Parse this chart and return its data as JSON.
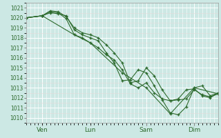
{
  "background_color": "#cce8e4",
  "grid_color": "#ffffff",
  "grid_color_minor": "#ddeee8",
  "line_color": "#2d6a2d",
  "ylim": [
    1009.5,
    1021.5
  ],
  "yticks": [
    1010,
    1011,
    1012,
    1013,
    1014,
    1015,
    1016,
    1017,
    1018,
    1019,
    1020,
    1021
  ],
  "day_labels": [
    "Ven",
    "Lun",
    "Sam",
    "Dim"
  ],
  "day_positions": [
    0.083,
    0.333,
    0.625,
    0.875
  ],
  "xlim": [
    0.0,
    1.05
  ],
  "series1_x": [
    0.0,
    0.083,
    0.25,
    0.333,
    0.5,
    0.625,
    0.75,
    0.875,
    1.0
  ],
  "series1_y": [
    1020.0,
    1020.2,
    1018.3,
    1017.5,
    1014.5,
    1013.0,
    1010.4,
    1013.0,
    1012.4
  ],
  "series2_x": [
    0.0,
    0.083,
    0.125,
    0.167,
    0.208,
    0.25,
    0.292,
    0.333,
    0.375,
    0.417,
    0.458,
    0.5,
    0.542,
    0.583,
    0.625,
    0.667,
    0.708,
    0.75,
    0.792,
    0.833,
    0.875,
    0.917,
    0.958,
    1.0
  ],
  "series2_y": [
    1020.0,
    1020.2,
    1020.5,
    1020.4,
    1020.2,
    1018.8,
    1018.3,
    1018.0,
    1017.7,
    1016.5,
    1015.5,
    1013.7,
    1013.8,
    1014.8,
    1014.5,
    1013.2,
    1011.8,
    1010.5,
    1010.3,
    1011.1,
    1013.0,
    1013.2,
    1012.2,
    1012.5
  ],
  "series3_x": [
    0.0,
    0.083,
    0.125,
    0.167,
    0.208,
    0.25,
    0.292,
    0.333,
    0.375,
    0.417,
    0.458,
    0.5,
    0.542,
    0.583,
    0.625,
    0.667,
    0.708,
    0.75,
    0.792,
    0.833,
    0.875,
    0.917,
    0.958,
    1.0
  ],
  "series3_y": [
    1020.0,
    1020.2,
    1020.7,
    1020.6,
    1020.1,
    1019.0,
    1018.5,
    1018.3,
    1018.0,
    1017.3,
    1016.5,
    1015.5,
    1013.5,
    1013.7,
    1015.0,
    1014.2,
    1012.8,
    1011.7,
    1011.9,
    1012.8,
    1012.9,
    1012.2,
    1012.0,
    1012.5
  ],
  "series4_x": [
    0.0,
    0.083,
    0.125,
    0.167,
    0.208,
    0.25,
    0.292,
    0.333,
    0.375,
    0.417,
    0.458,
    0.5,
    0.542,
    0.583,
    0.625,
    0.667,
    0.708,
    0.75,
    0.792,
    0.833,
    0.875,
    0.917,
    0.958,
    1.0
  ],
  "series4_y": [
    1020.0,
    1020.2,
    1020.6,
    1020.5,
    1019.9,
    1018.3,
    1018.0,
    1017.5,
    1017.0,
    1016.3,
    1015.8,
    1014.8,
    1013.4,
    1013.0,
    1013.5,
    1012.5,
    1011.9,
    1011.7,
    1011.8,
    1011.9,
    1012.8,
    1012.3,
    1012.1,
    1012.4
  ]
}
